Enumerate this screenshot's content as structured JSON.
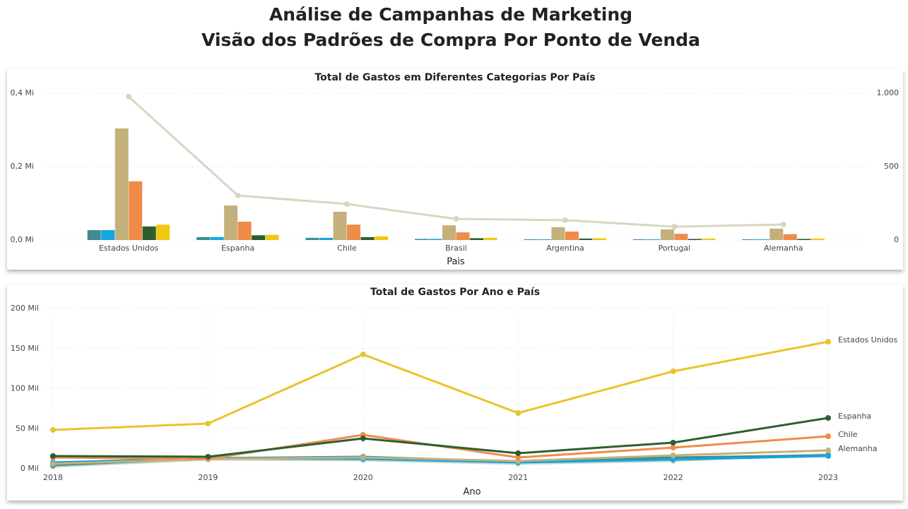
{
  "header": {
    "title": "Análise de Campanhas de Marketing",
    "subtitle": "Visão dos Padrões de Compra Por Ponto de Venda"
  },
  "chart_data": [
    {
      "type": "bar",
      "title": "Total de Gastos em Diferentes Categorias Por País",
      "x_label": "Pais",
      "categories": [
        "Estados Unidos",
        "Espanha",
        "Chile",
        "Brasil",
        "Argentina",
        "Portugal",
        "Alemanha"
      ],
      "series": [
        {
          "color": "#3d8b93",
          "values": [
            27000,
            8000,
            6000,
            3000,
            2000,
            2000,
            2000
          ]
        },
        {
          "color": "#12a6e2",
          "values": [
            27000,
            8000,
            6000,
            3000,
            2000,
            2000,
            2000
          ]
        },
        {
          "color": "#c4b07b",
          "values": [
            304000,
            94000,
            77000,
            40000,
            35000,
            29000,
            31000
          ]
        },
        {
          "color": "#ef8c4a",
          "values": [
            160000,
            50000,
            42000,
            21000,
            23000,
            17000,
            16000
          ]
        },
        {
          "color": "#2c5f30",
          "values": [
            37000,
            13000,
            8000,
            5000,
            4000,
            3000,
            3000
          ]
        },
        {
          "color": "#f2c80f",
          "values": [
            42000,
            14000,
            10000,
            6000,
            5000,
            4000,
            4000
          ]
        },
        {
          "type": "line",
          "axis": "y2",
          "color": "#d6d6c2",
          "values": [
            976,
            303,
            245,
            144,
            135,
            91,
            106
          ]
        }
      ],
      "ylim": [
        0,
        400000
      ],
      "yticks": [
        {
          "value": 0,
          "label": "0,0 Mi"
        },
        {
          "value": 200000,
          "label": "0,2 Mi"
        },
        {
          "value": 400000,
          "label": "0,4 Mi"
        }
      ],
      "y2lim": [
        0,
        1000
      ],
      "y2ticks": [
        0,
        500,
        {
          "value": 1000,
          "label": "1.000"
        }
      ],
      "grid": true
    },
    {
      "type": "line",
      "title": "Total de Gastos Por Ano e País",
      "x_label": "Ano",
      "x": [
        2018,
        2019,
        2020,
        2021,
        2022,
        2023
      ],
      "xlim": [
        2018,
        2023
      ],
      "xticks": [
        2018,
        2019,
        2020,
        2021,
        2022,
        2023
      ],
      "series": [
        {
          "color": "#c9d6c6",
          "values": [
            2600,
            11500,
            10600,
            6200,
            9700,
            18500
          ]
        },
        {
          "color": "#3d8b93",
          "values": [
            4400,
            13200,
            15000,
            8800,
            14100,
            16700
          ]
        },
        {
          "color": "#12a6e2",
          "values": [
            7900,
            13200,
            12300,
            7900,
            11500,
            15900
          ]
        },
        {
          "name": "Alemanha",
          "color": "#c4b07b",
          "values": [
            6200,
            12300,
            14100,
            9700,
            16700,
            22900
          ]
        },
        {
          "name": "Chile",
          "color": "#ef8c4a",
          "values": [
            14100,
            12300,
            42300,
            14100,
            26400,
            40500
          ]
        },
        {
          "name": "Espanha",
          "color": "#2c5f30",
          "values": [
            15900,
            15000,
            37900,
            19400,
            32600,
            63400
          ]
        },
        {
          "name": "Estados Unidos",
          "color": "#e9c42b",
          "values": [
            48500,
            56400,
            142700,
            69600,
            121600,
            158600
          ]
        }
      ],
      "ylim": [
        0,
        200000
      ],
      "yticks": [
        {
          "value": 0,
          "label": "0 Mil"
        },
        {
          "value": 50000,
          "label": "50 Mil"
        },
        {
          "value": 100000,
          "label": "100 Mil"
        },
        {
          "value": 150000,
          "label": "150 Mil"
        },
        {
          "value": 200000,
          "label": "200 Mil"
        }
      ],
      "grid": true
    }
  ]
}
